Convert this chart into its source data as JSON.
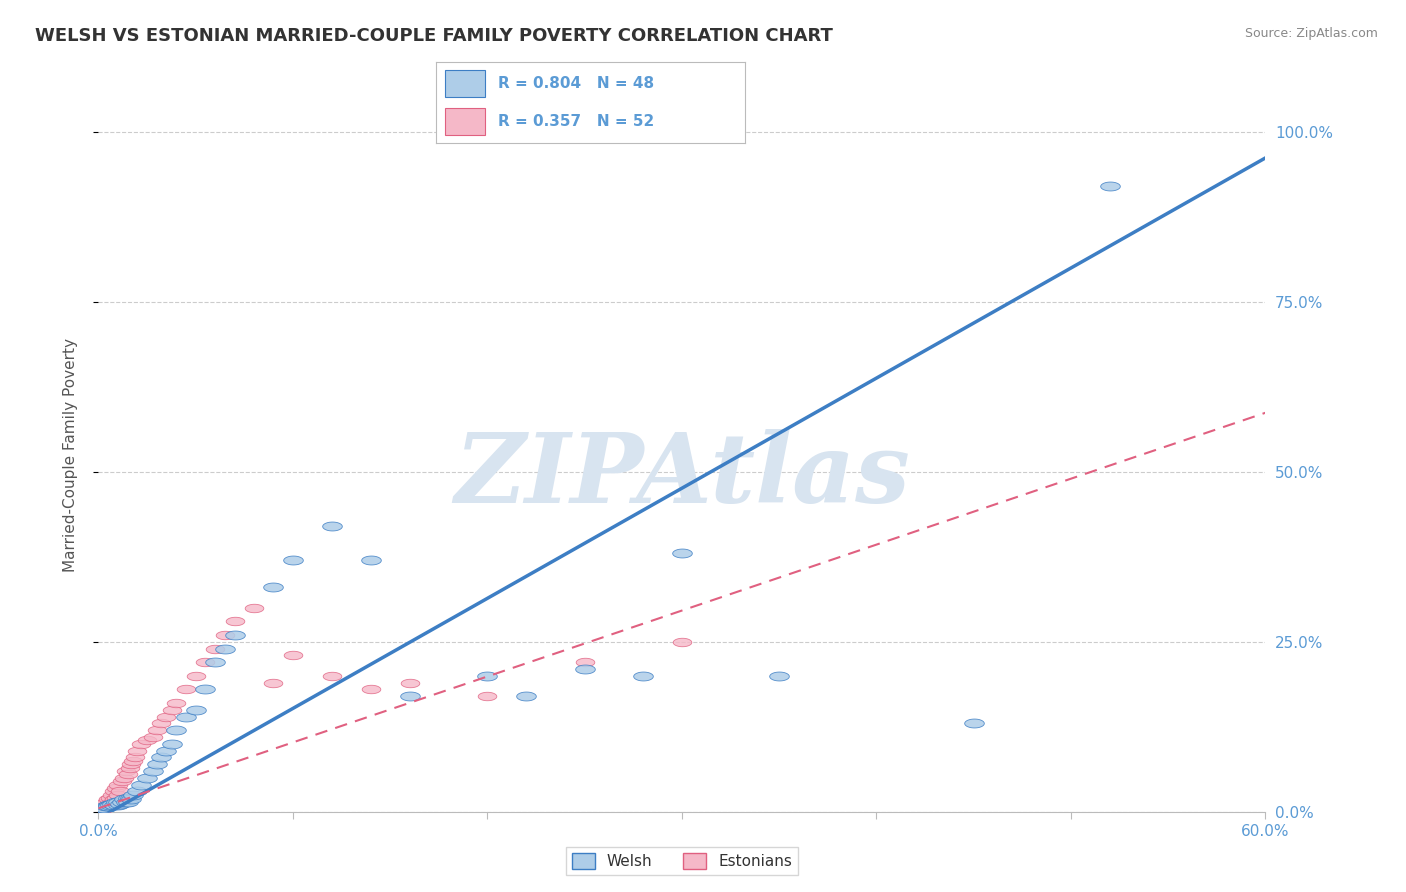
{
  "title": "WELSH VS ESTONIAN MARRIED-COUPLE FAMILY POVERTY CORRELATION CHART",
  "source_text": "Source: ZipAtlas.com",
  "ylabel": "Married-Couple Family Poverty",
  "xlim": [
    0.0,
    0.6
  ],
  "ylim": [
    0.0,
    1.05
  ],
  "xticks": [
    0.0,
    0.1,
    0.2,
    0.3,
    0.4,
    0.5,
    0.6
  ],
  "xticklabels": [
    "0.0%",
    "",
    "",
    "",
    "",
    "",
    "60.0%"
  ],
  "yticks": [
    0.0,
    0.25,
    0.5,
    0.75,
    1.0
  ],
  "yticklabels": [
    "0.0%",
    "25.0%",
    "50.0%",
    "75.0%",
    "100.0%"
  ],
  "welsh_R": 0.804,
  "welsh_N": 48,
  "estonian_R": 0.357,
  "estonian_N": 52,
  "welsh_color": "#aecde8",
  "estonian_color": "#f5b8c8",
  "welsh_line_color": "#3d7ec4",
  "estonian_line_color": "#e06080",
  "background_color": "#ffffff",
  "grid_color": "#cccccc",
  "title_color": "#333333",
  "axis_label_color": "#555555",
  "tick_color": "#5b9bd5",
  "watermark_color": "#d8e4f0",
  "watermark_text": "ZIPAtlas",
  "legend_welsh_label": "Welsh",
  "legend_estonian_label": "Estonians",
  "welsh_line_slope": 1.62,
  "welsh_line_intercept": -0.01,
  "estonian_line_slope": 0.97,
  "estonian_line_intercept": 0.005,
  "welsh_x": [
    0.002,
    0.003,
    0.004,
    0.005,
    0.005,
    0.006,
    0.007,
    0.008,
    0.009,
    0.01,
    0.01,
    0.011,
    0.012,
    0.013,
    0.014,
    0.015,
    0.015,
    0.016,
    0.017,
    0.018,
    0.02,
    0.022,
    0.025,
    0.028,
    0.03,
    0.032,
    0.035,
    0.038,
    0.04,
    0.045,
    0.05,
    0.055,
    0.06,
    0.065,
    0.07,
    0.09,
    0.1,
    0.12,
    0.14,
    0.16,
    0.2,
    0.22,
    0.25,
    0.28,
    0.3,
    0.35,
    0.45,
    0.52
  ],
  "welsh_y": [
    0.005,
    0.005,
    0.008,
    0.01,
    0.008,
    0.01,
    0.012,
    0.01,
    0.015,
    0.01,
    0.015,
    0.012,
    0.015,
    0.018,
    0.015,
    0.02,
    0.015,
    0.02,
    0.018,
    0.025,
    0.03,
    0.04,
    0.05,
    0.06,
    0.07,
    0.08,
    0.09,
    0.1,
    0.12,
    0.14,
    0.15,
    0.18,
    0.22,
    0.24,
    0.26,
    0.33,
    0.37,
    0.42,
    0.37,
    0.17,
    0.2,
    0.17,
    0.21,
    0.2,
    0.38,
    0.2,
    0.13,
    0.92
  ],
  "estonian_x": [
    0.001,
    0.002,
    0.002,
    0.003,
    0.003,
    0.004,
    0.004,
    0.005,
    0.005,
    0.006,
    0.006,
    0.007,
    0.007,
    0.008,
    0.008,
    0.009,
    0.009,
    0.01,
    0.01,
    0.011,
    0.012,
    0.013,
    0.014,
    0.015,
    0.016,
    0.017,
    0.018,
    0.019,
    0.02,
    0.022,
    0.025,
    0.028,
    0.03,
    0.032,
    0.035,
    0.038,
    0.04,
    0.045,
    0.05,
    0.055,
    0.06,
    0.065,
    0.07,
    0.08,
    0.09,
    0.1,
    0.12,
    0.14,
    0.16,
    0.2,
    0.25,
    0.3
  ],
  "estonian_y": [
    0.005,
    0.003,
    0.01,
    0.005,
    0.012,
    0.008,
    0.015,
    0.01,
    0.018,
    0.012,
    0.02,
    0.015,
    0.025,
    0.018,
    0.03,
    0.02,
    0.035,
    0.025,
    0.04,
    0.03,
    0.045,
    0.05,
    0.06,
    0.055,
    0.065,
    0.07,
    0.075,
    0.08,
    0.09,
    0.1,
    0.105,
    0.11,
    0.12,
    0.13,
    0.14,
    0.15,
    0.16,
    0.18,
    0.2,
    0.22,
    0.24,
    0.26,
    0.28,
    0.3,
    0.19,
    0.23,
    0.2,
    0.18,
    0.19,
    0.17,
    0.22,
    0.25
  ]
}
